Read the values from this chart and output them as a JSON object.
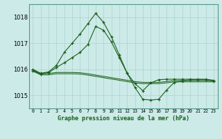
{
  "title": "Graphe pression niveau de la mer (hPa)",
  "xlabel_hours": [
    0,
    1,
    2,
    3,
    4,
    5,
    6,
    7,
    8,
    9,
    10,
    11,
    12,
    13,
    14,
    15,
    16,
    17,
    18,
    19,
    20,
    21,
    22,
    23
  ],
  "ylim": [
    1014.5,
    1018.5
  ],
  "yticks": [
    1015,
    1016,
    1017,
    1018
  ],
  "bg_color": "#cceae7",
  "grid_color": "#aad4d0",
  "line_color": "#1a5e1a",
  "line1": [
    1016.0,
    1015.85,
    1015.9,
    1016.15,
    1016.65,
    1017.0,
    1017.35,
    1017.75,
    1018.15,
    1017.8,
    1017.25,
    1016.55,
    1015.85,
    1015.3,
    1014.85,
    1014.82,
    1014.85,
    1015.2,
    1015.5,
    1015.55,
    1015.6,
    1015.6,
    1015.6,
    1015.55
  ],
  "line2": [
    1015.95,
    1015.82,
    1015.87,
    1016.07,
    1016.25,
    1016.45,
    1016.65,
    1016.95,
    1017.65,
    1017.5,
    1017.05,
    1016.45,
    1015.85,
    1015.45,
    1015.18,
    1015.48,
    1015.6,
    1015.62,
    1015.62,
    1015.62,
    1015.62,
    1015.62,
    1015.62,
    1015.58
  ],
  "line3": [
    1015.98,
    1015.84,
    1015.84,
    1015.88,
    1015.88,
    1015.88,
    1015.87,
    1015.83,
    1015.78,
    1015.73,
    1015.68,
    1015.63,
    1015.58,
    1015.53,
    1015.5,
    1015.5,
    1015.5,
    1015.53,
    1015.57,
    1015.57,
    1015.57,
    1015.57,
    1015.57,
    1015.57
  ],
  "line4": [
    1015.93,
    1015.79,
    1015.79,
    1015.83,
    1015.83,
    1015.83,
    1015.82,
    1015.78,
    1015.73,
    1015.68,
    1015.63,
    1015.58,
    1015.53,
    1015.48,
    1015.45,
    1015.45,
    1015.45,
    1015.48,
    1015.52,
    1015.52,
    1015.52,
    1015.52,
    1015.52,
    1015.52
  ]
}
